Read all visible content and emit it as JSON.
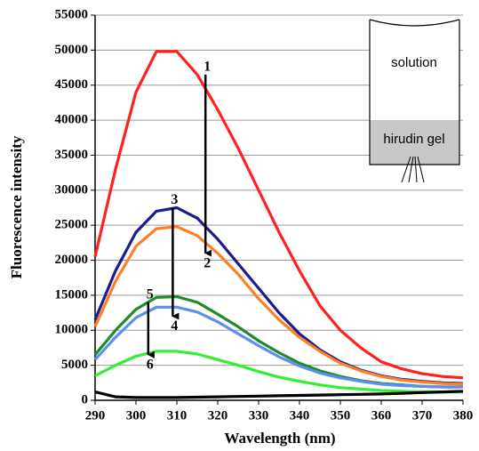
{
  "chart_data": {
    "type": "line",
    "x_label": "Wavelength (nm)",
    "y_label": "Fluorescence intensity",
    "x": [
      290,
      295,
      300,
      305,
      310,
      315,
      320,
      325,
      330,
      335,
      340,
      345,
      350,
      355,
      360,
      365,
      370,
      375,
      380
    ],
    "series": [
      {
        "color": "#ff2020",
        "values": [
          20500,
          33000,
          44000,
          49800,
          49800,
          46500,
          41500,
          36000,
          30000,
          24000,
          18500,
          13500,
          10000,
          7500,
          5500,
          4500,
          3800,
          3400,
          3200
        ]
      },
      {
        "color": "#1c1c8c",
        "values": [
          11500,
          18500,
          24000,
          27000,
          27500,
          26000,
          23000,
          19500,
          16000,
          12500,
          9500,
          7200,
          5500,
          4300,
          3500,
          3000,
          2700,
          2500,
          2400
        ]
      },
      {
        "color": "#ff7f27",
        "values": [
          10500,
          17000,
          22000,
          24500,
          24800,
          23500,
          21000,
          18000,
          14500,
          11500,
          9000,
          7000,
          5300,
          4200,
          3400,
          2900,
          2600,
          2400,
          2300
        ]
      },
      {
        "color": "#1f8a2a",
        "values": [
          6500,
          10000,
          13000,
          14700,
          14800,
          14000,
          12300,
          10500,
          8500,
          6800,
          5300,
          4200,
          3400,
          2800,
          2400,
          2200,
          2000,
          1900,
          1900
        ]
      },
      {
        "color": "#5a8ff0",
        "values": [
          5800,
          9000,
          11800,
          13300,
          13300,
          12600,
          11200,
          9500,
          7800,
          6200,
          4900,
          3900,
          3200,
          2700,
          2300,
          2100,
          2000,
          1900,
          1900
        ]
      },
      {
        "color": "#33ee33",
        "values": [
          3500,
          5000,
          6300,
          7000,
          7000,
          6600,
          5800,
          5000,
          4100,
          3300,
          2700,
          2200,
          1800,
          1600,
          1400,
          1300,
          1200,
          1200,
          1200
        ]
      },
      {
        "color": "#000000",
        "values": [
          1200,
          500,
          400,
          400,
          400,
          450,
          500,
          550,
          600,
          650,
          700,
          750,
          800,
          850,
          900,
          1000,
          1100,
          1200,
          1300
        ]
      }
    ],
    "xlim": [
      290,
      380
    ],
    "xticks": [
      290,
      300,
      310,
      320,
      330,
      340,
      350,
      360,
      370,
      380
    ],
    "ylim": [
      0,
      55000
    ],
    "yticks": [
      0,
      5000,
      10000,
      15000,
      20000,
      25000,
      30000,
      35000,
      40000,
      45000,
      50000,
      55000
    ],
    "grid": true,
    "arrows": [
      {
        "from_label": "1",
        "to_label": "2",
        "x": 317,
        "y_from": 46500,
        "y_to": 21000
      },
      {
        "from_label": "3",
        "to_label": "4",
        "x": 309,
        "y_from": 27500,
        "y_to": 12000
      },
      {
        "from_label": "5",
        "to_label": "6",
        "x": 303,
        "y_from": 14000,
        "y_to": 6500
      }
    ],
    "inset": {
      "top_label": "solution",
      "bottom_label": "hirudin gel"
    }
  }
}
